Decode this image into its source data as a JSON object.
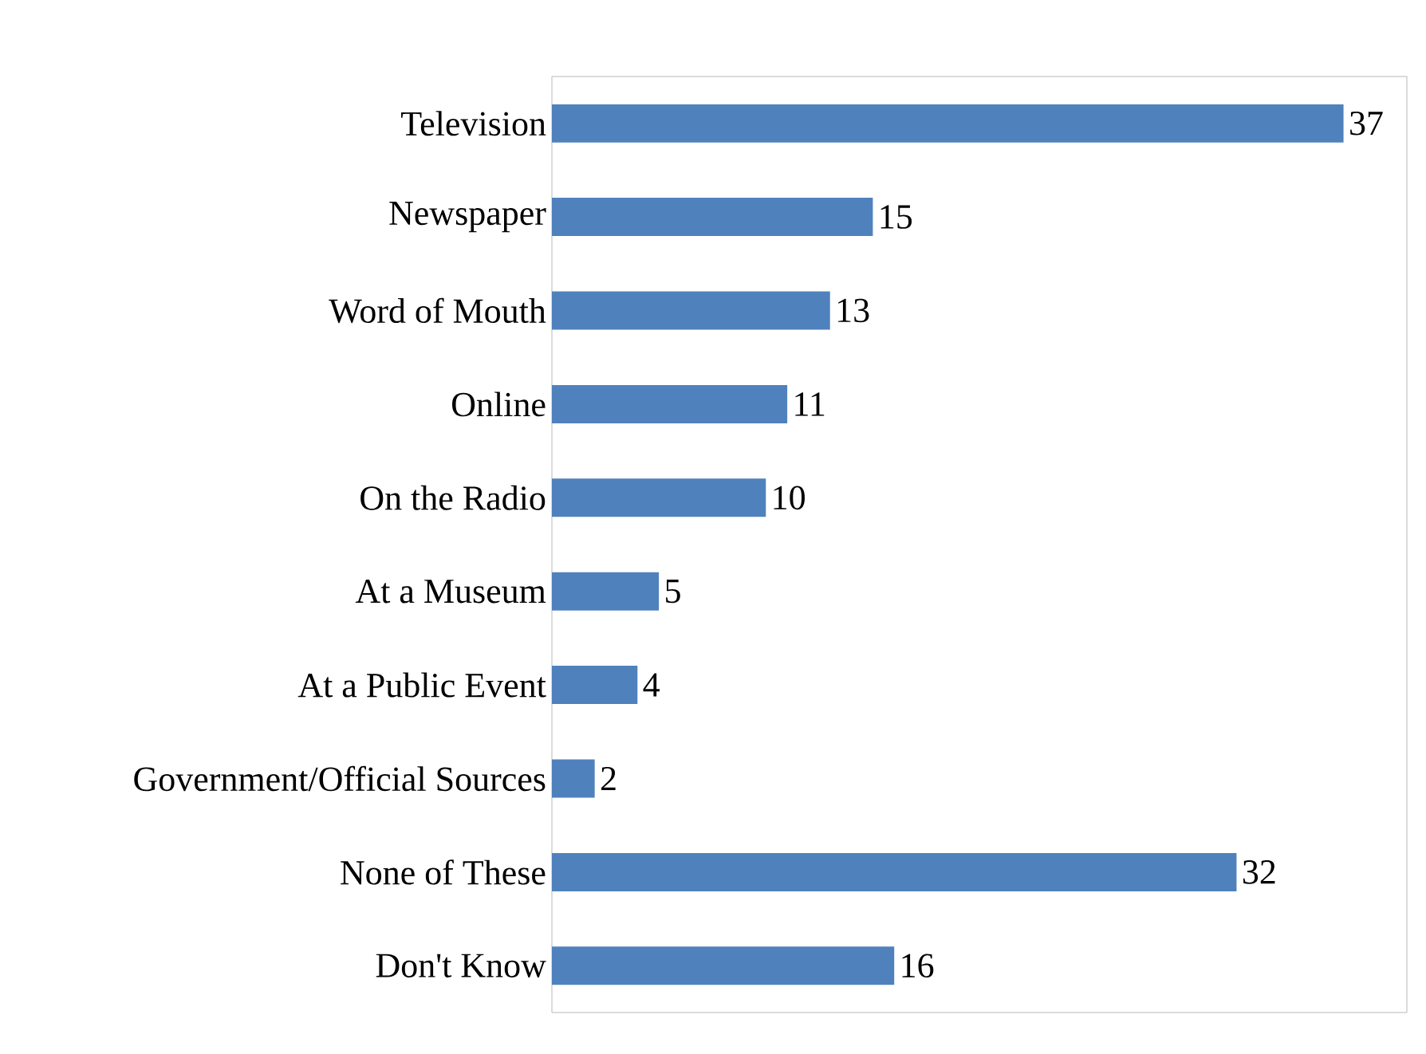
{
  "chart_data": {
    "type": "bar",
    "orientation": "horizontal",
    "categories": [
      "Television",
      "Newspaper",
      "Word of Mouth",
      "Online",
      "On the Radio",
      "At a Museum",
      "At a Public Event",
      "Government/Official Sources",
      "None of These",
      "Don't Know"
    ],
    "values": [
      37,
      15,
      13,
      11,
      10,
      5,
      4,
      2,
      32,
      16
    ],
    "color": "#4f81bd",
    "data_labels": true
  }
}
